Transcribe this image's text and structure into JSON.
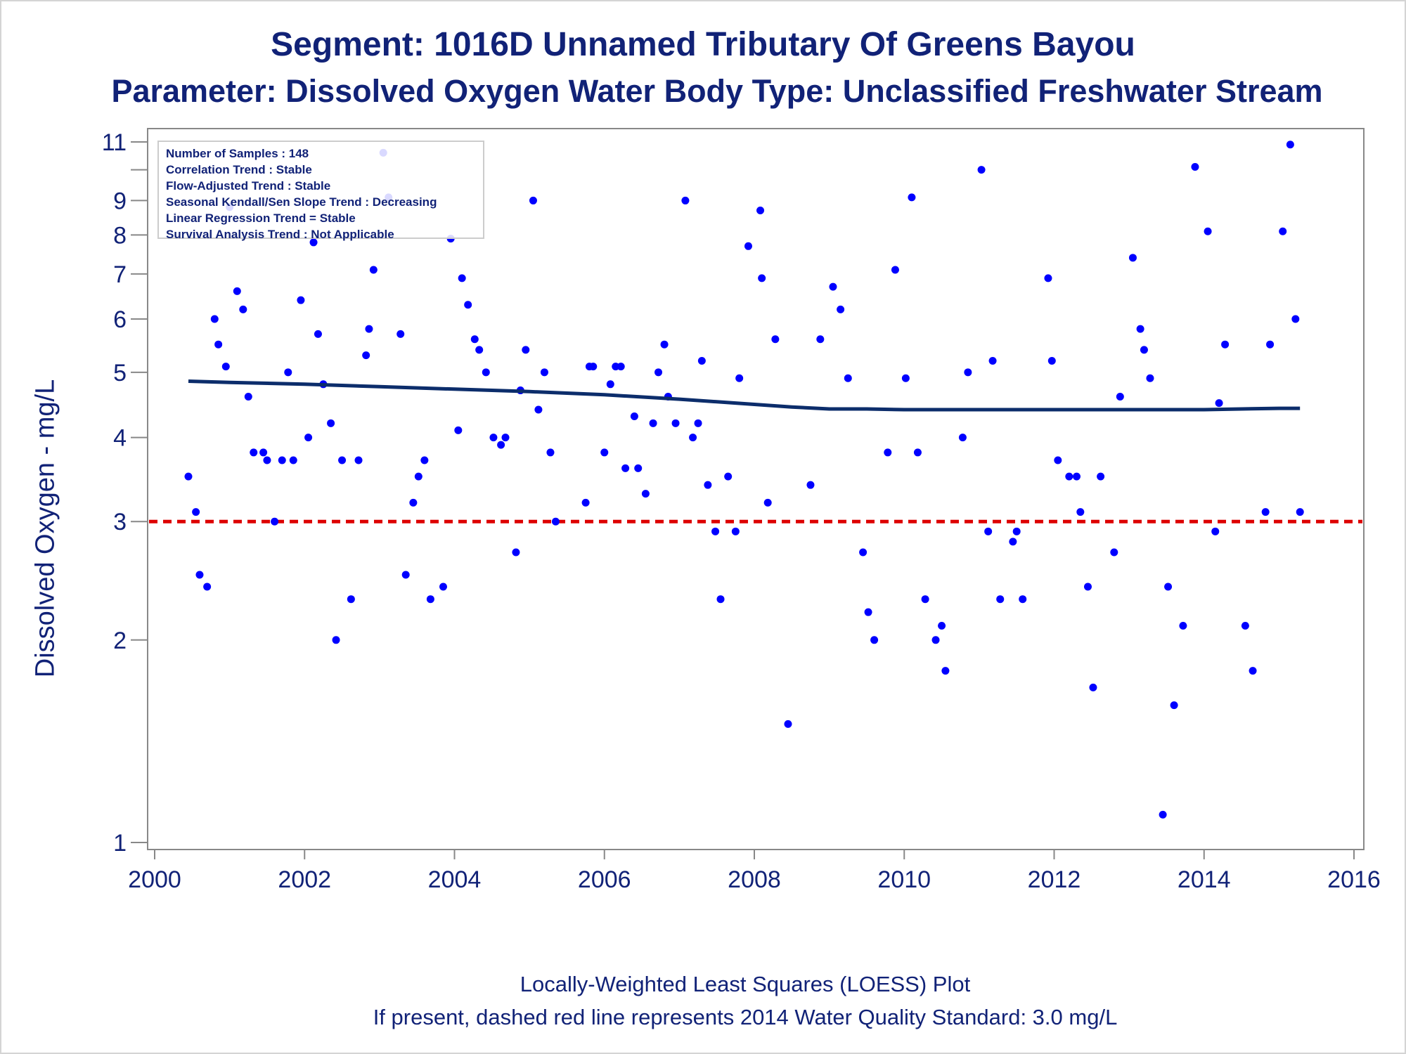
{
  "header": {
    "title_line1": "Segment: 1016D  Unnamed Tributary Of Greens Bayou",
    "title_line2": "Parameter: Dissolved Oxygen   Water Body Type: Unclassified Freshwater Stream"
  },
  "legend_box": {
    "samples": "Number of Samples : 148",
    "correlation": "Correlation Trend : Stable",
    "flow_adjusted": "Flow-Adjusted Trend : Stable",
    "seasonal_kendall": "Seasonal Kendall/Sen Slope Trend : Decreasing",
    "linear_regression": "Linear Regression Trend = Stable",
    "survival": "Survival Analysis Trend : Not Applicable"
  },
  "footer": {
    "line1": "Locally-Weighted Least Squares (LOESS) Plot",
    "line2": "If present, dashed red line represents 2014 Water Quality Standard: 3.0 mg/L"
  },
  "colors": {
    "text": "#112277",
    "points": "#0000ff",
    "loess": "#0c2d6b",
    "standard": "#dd0000",
    "axis": "#888888"
  },
  "chart_data": {
    "type": "scatter",
    "title": "Segment: 1016D  Unnamed Tributary Of Greens Bayou",
    "subtitle": "Parameter: Dissolved Oxygen   Water Body Type: Unclassified Freshwater Stream",
    "xlabel": "",
    "ylabel": "Dissolved Oxygen - mg/L",
    "y_scale": "log",
    "xlim": [
      2000,
      2016
    ],
    "ylim": [
      0.95,
      11.4
    ],
    "x_ticks": [
      2000,
      2002,
      2004,
      2006,
      2008,
      2010,
      2012,
      2014,
      2016
    ],
    "y_ticks": [
      1,
      2,
      3,
      4,
      5,
      6,
      7,
      8,
      9,
      11
    ],
    "y_minor_ticks": [
      10
    ],
    "standard_line": 3.0,
    "grid": false,
    "legend_position": "top-left",
    "points": [
      [
        2000.45,
        3.5
      ],
      [
        2000.55,
        3.1
      ],
      [
        2000.6,
        2.5
      ],
      [
        2000.7,
        2.4
      ],
      [
        2000.8,
        6.0
      ],
      [
        2000.85,
        5.5
      ],
      [
        2000.95,
        5.1
      ],
      [
        2001.0,
        8.8
      ],
      [
        2001.1,
        6.6
      ],
      [
        2001.18,
        6.2
      ],
      [
        2001.25,
        4.6
      ],
      [
        2001.32,
        3.8
      ],
      [
        2001.45,
        3.8
      ],
      [
        2001.5,
        3.7
      ],
      [
        2001.6,
        3.0
      ],
      [
        2001.7,
        3.7
      ],
      [
        2001.78,
        5.0
      ],
      [
        2001.85,
        3.7
      ],
      [
        2001.95,
        6.4
      ],
      [
        2002.05,
        4.0
      ],
      [
        2002.12,
        7.8
      ],
      [
        2002.18,
        5.7
      ],
      [
        2002.25,
        4.8
      ],
      [
        2002.35,
        4.2
      ],
      [
        2002.42,
        2.0
      ],
      [
        2002.5,
        3.7
      ],
      [
        2002.62,
        2.3
      ],
      [
        2002.72,
        3.7
      ],
      [
        2002.82,
        5.3
      ],
      [
        2002.86,
        5.8
      ],
      [
        2002.92,
        7.1
      ],
      [
        2003.05,
        10.6
      ],
      [
        2003.12,
        9.1
      ],
      [
        2003.28,
        5.7
      ],
      [
        2003.35,
        2.5
      ],
      [
        2003.45,
        3.2
      ],
      [
        2003.52,
        3.5
      ],
      [
        2003.6,
        3.7
      ],
      [
        2003.68,
        2.3
      ],
      [
        2003.85,
        2.4
      ],
      [
        2003.95,
        7.9
      ],
      [
        2004.05,
        4.1
      ],
      [
        2004.1,
        6.9
      ],
      [
        2004.18,
        6.3
      ],
      [
        2004.27,
        5.6
      ],
      [
        2004.33,
        5.4
      ],
      [
        2004.42,
        5.0
      ],
      [
        2004.52,
        4.0
      ],
      [
        2004.62,
        3.9
      ],
      [
        2004.68,
        4.0
      ],
      [
        2004.82,
        2.7
      ],
      [
        2004.88,
        4.7
      ],
      [
        2004.95,
        5.4
      ],
      [
        2005.05,
        9.0
      ],
      [
        2005.12,
        4.4
      ],
      [
        2005.2,
        5.0
      ],
      [
        2005.28,
        3.8
      ],
      [
        2005.35,
        3.0
      ],
      [
        2005.75,
        3.2
      ],
      [
        2005.8,
        5.1
      ],
      [
        2005.85,
        5.1
      ],
      [
        2006.0,
        3.8
      ],
      [
        2006.08,
        4.8
      ],
      [
        2006.15,
        5.1
      ],
      [
        2006.22,
        5.1
      ],
      [
        2006.28,
        3.6
      ],
      [
        2006.4,
        4.3
      ],
      [
        2006.45,
        3.6
      ],
      [
        2006.55,
        3.3
      ],
      [
        2006.65,
        4.2
      ],
      [
        2006.72,
        5.0
      ],
      [
        2006.8,
        5.5
      ],
      [
        2006.85,
        4.6
      ],
      [
        2006.95,
        4.2
      ],
      [
        2007.08,
        9.0
      ],
      [
        2007.18,
        4.0
      ],
      [
        2007.25,
        4.2
      ],
      [
        2007.3,
        5.2
      ],
      [
        2007.38,
        3.4
      ],
      [
        2007.48,
        2.9
      ],
      [
        2007.55,
        2.3
      ],
      [
        2007.65,
        3.5
      ],
      [
        2007.75,
        2.9
      ],
      [
        2007.8,
        4.9
      ],
      [
        2007.92,
        7.7
      ],
      [
        2008.08,
        8.7
      ],
      [
        2008.1,
        6.9
      ],
      [
        2008.18,
        3.2
      ],
      [
        2008.28,
        5.6
      ],
      [
        2008.45,
        1.5
      ],
      [
        2008.75,
        3.4
      ],
      [
        2008.88,
        5.6
      ],
      [
        2009.05,
        6.7
      ],
      [
        2009.15,
        6.2
      ],
      [
        2009.25,
        4.9
      ],
      [
        2009.45,
        2.7
      ],
      [
        2009.52,
        2.2
      ],
      [
        2009.6,
        2.0
      ],
      [
        2009.78,
        3.8
      ],
      [
        2009.88,
        7.1
      ],
      [
        2010.02,
        4.9
      ],
      [
        2010.1,
        9.1
      ],
      [
        2010.18,
        3.8
      ],
      [
        2010.28,
        2.3
      ],
      [
        2010.42,
        2.0
      ],
      [
        2010.5,
        2.1
      ],
      [
        2010.55,
        1.8
      ],
      [
        2010.78,
        4.0
      ],
      [
        2010.85,
        5.0
      ],
      [
        2011.03,
        10.0
      ],
      [
        2011.12,
        2.9
      ],
      [
        2011.18,
        5.2
      ],
      [
        2011.28,
        2.3
      ],
      [
        2011.45,
        2.8
      ],
      [
        2011.5,
        2.9
      ],
      [
        2011.58,
        2.3
      ],
      [
        2011.92,
        6.9
      ],
      [
        2011.97,
        5.2
      ],
      [
        2012.05,
        3.7
      ],
      [
        2012.2,
        3.5
      ],
      [
        2012.3,
        3.5
      ],
      [
        2012.35,
        3.1
      ],
      [
        2012.45,
        2.4
      ],
      [
        2012.52,
        1.7
      ],
      [
        2012.62,
        3.5
      ],
      [
        2012.8,
        2.7
      ],
      [
        2012.88,
        4.6
      ],
      [
        2013.05,
        7.4
      ],
      [
        2013.15,
        5.8
      ],
      [
        2013.2,
        5.4
      ],
      [
        2013.28,
        4.9
      ],
      [
        2013.45,
        1.1
      ],
      [
        2013.52,
        2.4
      ],
      [
        2013.6,
        1.6
      ],
      [
        2013.72,
        2.1
      ],
      [
        2013.88,
        10.1
      ],
      [
        2014.05,
        8.1
      ],
      [
        2014.15,
        2.9
      ],
      [
        2014.2,
        4.5
      ],
      [
        2014.28,
        5.5
      ],
      [
        2014.55,
        2.1
      ],
      [
        2014.65,
        1.8
      ],
      [
        2014.82,
        3.1
      ],
      [
        2014.88,
        5.5
      ],
      [
        2015.05,
        8.1
      ],
      [
        2015.15,
        10.9
      ],
      [
        2015.22,
        6.0
      ],
      [
        2015.28,
        3.1
      ]
    ],
    "loess": [
      [
        2000.45,
        4.85
      ],
      [
        2001.0,
        4.83
      ],
      [
        2002.0,
        4.8
      ],
      [
        2003.0,
        4.76
      ],
      [
        2004.0,
        4.72
      ],
      [
        2005.0,
        4.68
      ],
      [
        2006.0,
        4.63
      ],
      [
        2007.0,
        4.56
      ],
      [
        2008.0,
        4.48
      ],
      [
        2008.5,
        4.44
      ],
      [
        2009.0,
        4.41
      ],
      [
        2009.5,
        4.41
      ],
      [
        2010.0,
        4.4
      ],
      [
        2011.0,
        4.4
      ],
      [
        2012.0,
        4.4
      ],
      [
        2013.0,
        4.4
      ],
      [
        2014.0,
        4.4
      ],
      [
        2014.5,
        4.41
      ],
      [
        2015.0,
        4.42
      ],
      [
        2015.28,
        4.42
      ]
    ]
  }
}
